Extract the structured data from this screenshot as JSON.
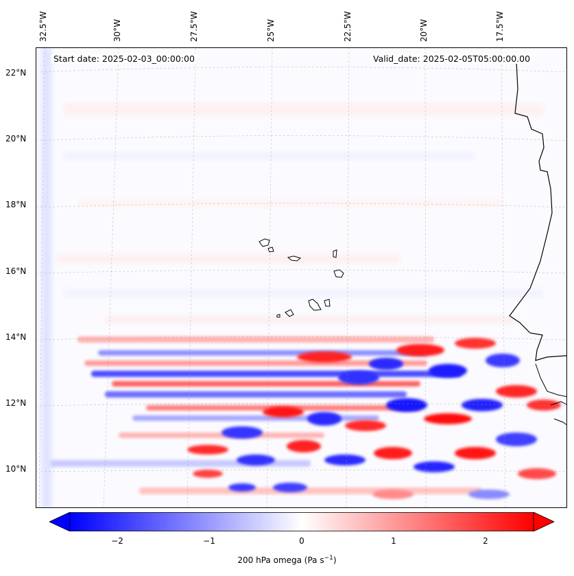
{
  "map": {
    "lon_labels": [
      "32.5°W",
      "30°W",
      "27.5°W",
      "25°W",
      "22.5°W",
      "20°W",
      "17.5°W"
    ],
    "lat_labels": [
      "22°N",
      "20°N",
      "18°N",
      "16°N",
      "14°N",
      "12°N",
      "10°N"
    ],
    "start_date": "Start date: 2025-02-03_00:00:00",
    "valid_date": "Valid_date: 2025-02-05T05:00:00.00",
    "field": "200 hPa omega",
    "units": "Pa s",
    "units_sup": "−1"
  },
  "colorbar": {
    "ticks": [
      "−2",
      "−1",
      "0",
      "1",
      "2"
    ],
    "min": -2.7,
    "max": 2.7,
    "low_color": "#0000ff",
    "high_color": "#ff0000"
  }
}
